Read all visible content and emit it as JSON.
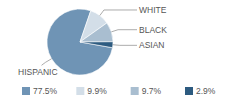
{
  "chart_data": {
    "type": "pie",
    "categories": [
      "HISPANIC",
      "WHITE",
      "BLACK",
      "ASIAN"
    ],
    "values": [
      77.5,
      9.9,
      9.7,
      2.9
    ],
    "value_labels": [
      "77.5%",
      "9.9%",
      "9.7%",
      "2.9%"
    ],
    "colors": [
      "#6f94b5",
      "#d3dee8",
      "#a9bed0",
      "#2d5b80"
    ]
  }
}
